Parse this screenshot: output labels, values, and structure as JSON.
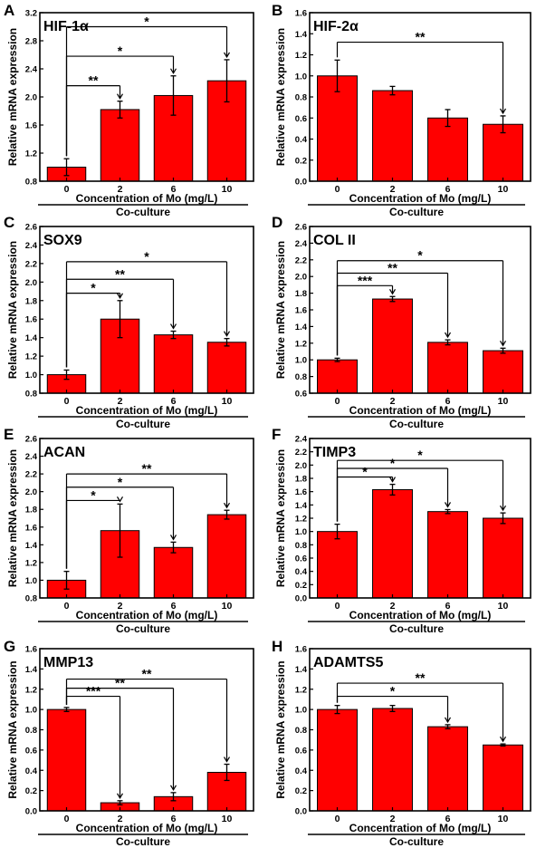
{
  "colors": {
    "bar": "#ff0000",
    "axis": "#000000",
    "text": "#000000"
  },
  "chart_data": [
    {
      "panel_letter": "A",
      "title": "HIF-1α",
      "type": "bar",
      "categories": [
        "0",
        "2",
        "6",
        "10"
      ],
      "values": [
        1.0,
        1.82,
        2.02,
        2.23
      ],
      "errors": [
        0.12,
        0.12,
        0.28,
        0.3
      ],
      "ylim": [
        0.8,
        3.2
      ],
      "yticks": [
        "0.8",
        "1.2",
        "1.6",
        "2.0",
        "2.4",
        "2.8",
        "3.2"
      ],
      "ylabel": "Relative mRNA expression",
      "xlabel": "Concentration of Mo (mg/L)",
      "group_label": "Co-culture",
      "significance": [
        {
          "to": 1,
          "label": "**",
          "y": 2.16
        },
        {
          "to": 2,
          "label": "*",
          "y": 2.58
        },
        {
          "to": 3,
          "label": "*",
          "y": 3.0
        }
      ]
    },
    {
      "panel_letter": "B",
      "title": "HIF-2α",
      "type": "bar",
      "categories": [
        "0",
        "2",
        "6",
        "10"
      ],
      "values": [
        1.0,
        0.86,
        0.6,
        0.54
      ],
      "errors": [
        0.15,
        0.04,
        0.08,
        0.08
      ],
      "ylim": [
        0.0,
        1.6
      ],
      "yticks": [
        "0.0",
        "0.2",
        "0.4",
        "0.6",
        "0.8",
        "1.0",
        "1.2",
        "1.4",
        "1.6"
      ],
      "ylabel": "Relative mRNA expression",
      "xlabel": "Concentration of Mo (mg/L)",
      "group_label": "Co-culture",
      "significance": [
        {
          "to": 3,
          "label": "**",
          "y": 1.32
        }
      ]
    },
    {
      "panel_letter": "C",
      "title": "SOX9",
      "type": "bar",
      "categories": [
        "0",
        "2",
        "6",
        "10"
      ],
      "values": [
        1.0,
        1.6,
        1.43,
        1.35
      ],
      "errors": [
        0.05,
        0.2,
        0.04,
        0.04
      ],
      "ylim": [
        0.8,
        2.6
      ],
      "yticks": [
        "0.8",
        "1.0",
        "1.2",
        "1.4",
        "1.6",
        "1.8",
        "2.0",
        "2.2",
        "2.4",
        "2.6"
      ],
      "ylabel": "Relative mRNA expression",
      "xlabel": "Concentration of Mo (mg/L)",
      "group_label": "Co-culture",
      "significance": [
        {
          "to": 1,
          "label": "*",
          "y": 1.88
        },
        {
          "to": 2,
          "label": "**",
          "y": 2.03
        },
        {
          "to": 3,
          "label": "*",
          "y": 2.22
        }
      ]
    },
    {
      "panel_letter": "D",
      "title": "COL II",
      "type": "bar",
      "categories": [
        "0",
        "2",
        "6",
        "10"
      ],
      "values": [
        1.0,
        1.73,
        1.21,
        1.11
      ],
      "errors": [
        0.02,
        0.03,
        0.03,
        0.03
      ],
      "ylim": [
        0.6,
        2.6
      ],
      "yticks": [
        "0.6",
        "0.8",
        "1.0",
        "1.2",
        "1.4",
        "1.6",
        "1.8",
        "2.0",
        "2.2",
        "2.4",
        "2.6"
      ],
      "ylabel": "Relative mRNA expression",
      "xlabel": "Concentration of Mo (mg/L)",
      "group_label": "Co-culture",
      "significance": [
        {
          "to": 1,
          "label": "***",
          "y": 1.89
        },
        {
          "to": 2,
          "label": "**",
          "y": 2.04
        },
        {
          "to": 3,
          "label": "*",
          "y": 2.19
        }
      ]
    },
    {
      "panel_letter": "E",
      "title": "ACAN",
      "type": "bar",
      "categories": [
        "0",
        "2",
        "6",
        "10"
      ],
      "values": [
        1.0,
        1.56,
        1.37,
        1.74
      ],
      "errors": [
        0.1,
        0.3,
        0.06,
        0.05
      ],
      "ylim": [
        0.8,
        2.6
      ],
      "yticks": [
        "0.8",
        "1.0",
        "1.2",
        "1.4",
        "1.6",
        "1.8",
        "2.0",
        "2.2",
        "2.4",
        "2.6"
      ],
      "ylabel": "Relative mRNA expression",
      "xlabel": "Concentration of Mo (mg/L)",
      "group_label": "Co-culture",
      "significance": [
        {
          "to": 1,
          "label": "*",
          "y": 1.9
        },
        {
          "to": 2,
          "label": "*",
          "y": 2.05
        },
        {
          "to": 3,
          "label": "**",
          "y": 2.2
        }
      ]
    },
    {
      "panel_letter": "F",
      "title": "TIMP3",
      "type": "bar",
      "categories": [
        "0",
        "2",
        "6",
        "10"
      ],
      "values": [
        1.0,
        1.63,
        1.3,
        1.2
      ],
      "errors": [
        0.11,
        0.08,
        0.03,
        0.08
      ],
      "ylim": [
        0.0,
        2.4
      ],
      "yticks": [
        "0.0",
        "0.2",
        "0.4",
        "0.6",
        "0.8",
        "1.0",
        "1.2",
        "1.4",
        "1.6",
        "1.8",
        "2.0",
        "2.2",
        "2.4"
      ],
      "ylabel": "Relative mRNA expression",
      "xlabel": "Concentration of Mo (mg/L)",
      "group_label": "Co-culture",
      "significance": [
        {
          "to": 1,
          "label": "*",
          "y": 1.82
        },
        {
          "to": 2,
          "label": "*",
          "y": 1.95
        },
        {
          "to": 3,
          "label": "*",
          "y": 2.07
        }
      ]
    },
    {
      "panel_letter": "G",
      "title": "MMP13",
      "type": "bar",
      "categories": [
        "0",
        "2",
        "6",
        "10"
      ],
      "values": [
        1.0,
        0.08,
        0.14,
        0.38
      ],
      "errors": [
        0.02,
        0.02,
        0.04,
        0.08
      ],
      "ylim": [
        0.0,
        1.6
      ],
      "yticks": [
        "0.0",
        "0.2",
        "0.4",
        "0.6",
        "0.8",
        "1.0",
        "1.2",
        "1.4",
        "1.6"
      ],
      "ylabel": "Relative mRNA expression",
      "xlabel": "Concentration of Mo (mg/L)",
      "group_label": "Co-culture",
      "significance": [
        {
          "to": 1,
          "label": "***",
          "y": 1.13
        },
        {
          "to": 2,
          "label": "**",
          "y": 1.21
        },
        {
          "to": 3,
          "label": "**",
          "y": 1.3
        }
      ]
    },
    {
      "panel_letter": "H",
      "title": "ADAMTS5",
      "type": "bar",
      "categories": [
        "0",
        "2",
        "6",
        "10"
      ],
      "values": [
        1.0,
        1.01,
        0.83,
        0.65
      ],
      "errors": [
        0.04,
        0.03,
        0.02,
        0.01
      ],
      "ylim": [
        0.0,
        1.6
      ],
      "yticks": [
        "0.0",
        "0.2",
        "0.4",
        "0.6",
        "0.8",
        "1.0",
        "1.2",
        "1.4",
        "1.6"
      ],
      "ylabel": "Relative mRNA expression",
      "xlabel": "Concentration of Mo (mg/L)",
      "group_label": "Co-culture",
      "significance": [
        {
          "to": 2,
          "label": "*",
          "y": 1.13
        },
        {
          "to": 3,
          "label": "**",
          "y": 1.26
        }
      ]
    }
  ]
}
